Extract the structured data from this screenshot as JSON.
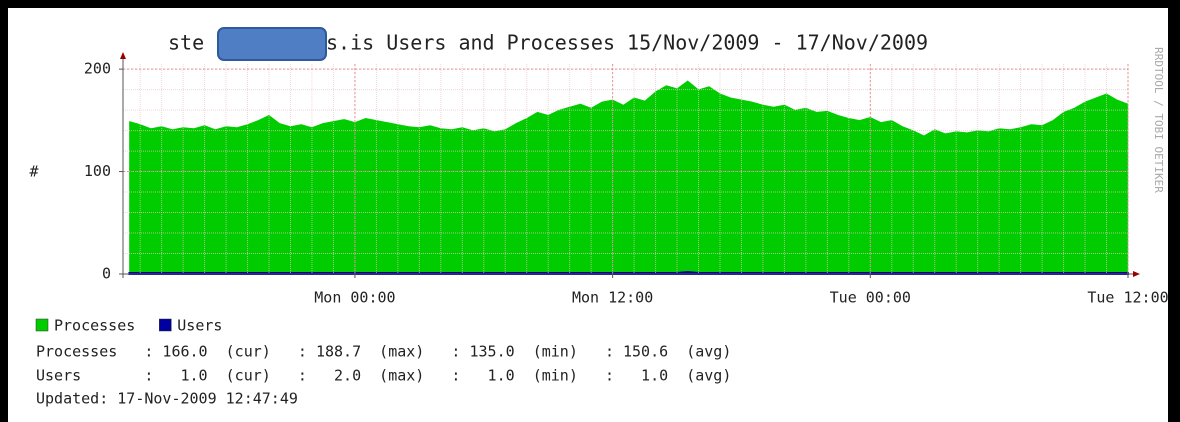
{
  "chart_data": {
    "type": "area",
    "title_start": "ste",
    "title_end": "s.is Users and Processes 15/Nov/2009 - 17/Nov/2009",
    "ylabel": "#",
    "side_text": "RRDTOOL / TOBI OETIKER",
    "ylim": [
      0,
      205
    ],
    "yticks": [
      0,
      100,
      200
    ],
    "y_minor_step": 20,
    "xlim": [
      -10.8,
      36
    ],
    "xticks": [
      {
        "value": 0,
        "label": "Mon 00:00"
      },
      {
        "value": 12,
        "label": "Mon 12:00"
      },
      {
        "value": 24,
        "label": "Tue 00:00"
      },
      {
        "value": 36,
        "label": "Tue 12:00"
      }
    ],
    "x_minor_step": 1,
    "grid": true,
    "x": [
      -10.5,
      -10,
      -9.5,
      -9,
      -8.5,
      -8,
      -7.5,
      -7,
      -6.5,
      -6,
      -5.5,
      -5,
      -4.5,
      -4,
      -3.5,
      -3,
      -2.5,
      -2,
      -1.5,
      -1,
      -0.5,
      0,
      0.5,
      1,
      1.5,
      2,
      2.5,
      3,
      3.5,
      4,
      4.5,
      5,
      5.5,
      6,
      6.5,
      7,
      7.5,
      8,
      8.5,
      9,
      9.5,
      10,
      10.5,
      11,
      11.5,
      12,
      12.5,
      13,
      13.5,
      14,
      14.5,
      15,
      15.5,
      16,
      16.5,
      17,
      17.5,
      18,
      18.5,
      19,
      19.5,
      20,
      20.5,
      21,
      21.5,
      22,
      22.5,
      23,
      23.5,
      24,
      24.5,
      25,
      25.5,
      26,
      26.5,
      27,
      27.5,
      28,
      28.5,
      29,
      29.5,
      30,
      30.5,
      31,
      31.5,
      32,
      32.5,
      33,
      33.5,
      34,
      34.5,
      35,
      35.5,
      36
    ],
    "series": [
      {
        "name": "Processes",
        "color": "#00cc00",
        "values": [
          149,
          146,
          142,
          144,
          141,
          143,
          142,
          145,
          141,
          144,
          143,
          146,
          150,
          155,
          147,
          144,
          146,
          143,
          147,
          149,
          151,
          148,
          152,
          150,
          148,
          146,
          144,
          143,
          145,
          142,
          141,
          143,
          140,
          142,
          139,
          141,
          147,
          152,
          158,
          155,
          160,
          163,
          166,
          162,
          168,
          170,
          165,
          172,
          169,
          178,
          184,
          181,
          188.7,
          180,
          183,
          176,
          172,
          170,
          168,
          165,
          163,
          165,
          160,
          162,
          158,
          159,
          155,
          152,
          150,
          153,
          148,
          150,
          144,
          140,
          135,
          141,
          137,
          139,
          138,
          140,
          139,
          142,
          141,
          143,
          146,
          145,
          150,
          158,
          162,
          168,
          172,
          176,
          170,
          166
        ]
      },
      {
        "name": "Users",
        "color": "#0000a0",
        "values": [
          1,
          1,
          1,
          1,
          1,
          1,
          1,
          1,
          1,
          1,
          1,
          1,
          1,
          1,
          1,
          1,
          1,
          1,
          1,
          1,
          1,
          1,
          1,
          1,
          1,
          1,
          1,
          1,
          1,
          1,
          1,
          1,
          1,
          1,
          1,
          1,
          1,
          1,
          1,
          1,
          1,
          1,
          1,
          1,
          1,
          1,
          1,
          1,
          1,
          1,
          1,
          1,
          2,
          1,
          1,
          1,
          1,
          1,
          1,
          1,
          1,
          1,
          1,
          1,
          1,
          1,
          1,
          1,
          1,
          1,
          1,
          1,
          1,
          1,
          1,
          1,
          1,
          1,
          1,
          1,
          1,
          1,
          1,
          1,
          1,
          1,
          1,
          1,
          1,
          1,
          1,
          1,
          1,
          1
        ]
      }
    ],
    "stats": [
      "Processes   : 166.0  (cur)   : 188.7  (max)   : 135.0  (min)   : 150.6  (avg)",
      "Users       :   1.0  (cur)   :   2.0  (max)   :   1.0  (min)   :   1.0  (avg)"
    ],
    "updated": "Updated: 17-Nov-2009 12:47:49"
  }
}
